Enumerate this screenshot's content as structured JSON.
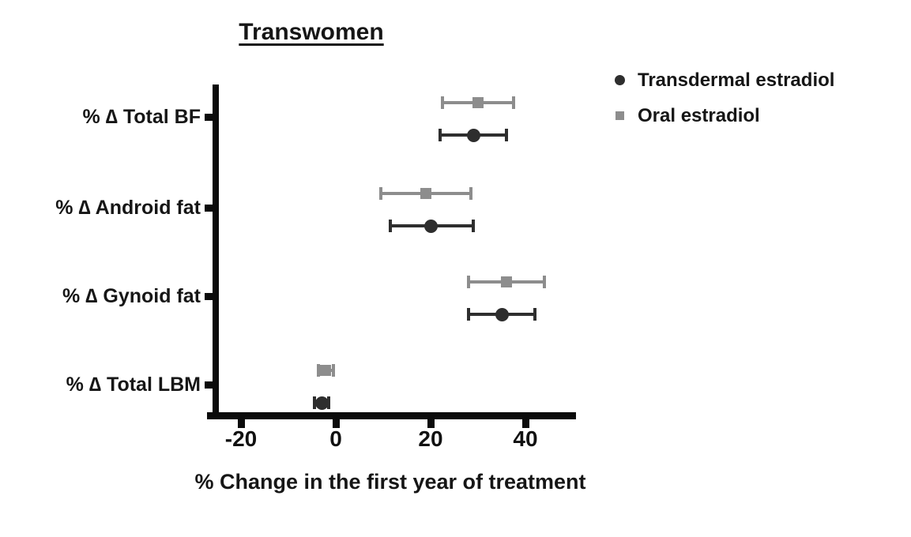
{
  "page": {
    "background": "#ffffff"
  },
  "chart_data": {
    "type": "scatter",
    "subtype": "horizontal-forest-plot-with-error-bars",
    "title": "Transwomen",
    "xlabel": "% Change in the first year of treatment",
    "categories": [
      "% ∆ Total BF",
      "% ∆ Android fat",
      "% ∆ Gynoid fat",
      "% ∆ Total LBM"
    ],
    "x_ticks": [
      -20,
      0,
      20,
      40
    ],
    "xlim": [
      -27,
      50
    ],
    "grid": false,
    "legend_position": "top-right",
    "axis_color": "#0b0b0b",
    "series": [
      {
        "name": "Transdermal estradiol",
        "marker": "circle",
        "color": "#2e2e2e",
        "points": [
          {
            "category": "% ∆ Total BF",
            "x": 29,
            "lo": 22,
            "hi": 36
          },
          {
            "category": "% ∆ Android fat",
            "x": 20,
            "lo": 11.5,
            "hi": 29
          },
          {
            "category": "% ∆ Gynoid fat",
            "x": 35,
            "lo": 28,
            "hi": 42
          },
          {
            "category": "% ∆ Total LBM",
            "x": -3,
            "lo": -4.5,
            "hi": -1.5
          }
        ]
      },
      {
        "name": "Oral estradiol",
        "marker": "square",
        "color": "#8d8d8d",
        "points": [
          {
            "category": "% ∆ Total BF",
            "x": 30,
            "lo": 22.5,
            "hi": 37.5
          },
          {
            "category": "% ∆ Android fat",
            "x": 19,
            "lo": 9.5,
            "hi": 28.5
          },
          {
            "category": "% ∆ Gynoid fat",
            "x": 36,
            "lo": 28,
            "hi": 44
          },
          {
            "category": "% ∆ Total LBM",
            "x": -2.2,
            "lo": -3.7,
            "hi": -0.5
          }
        ]
      }
    ]
  }
}
